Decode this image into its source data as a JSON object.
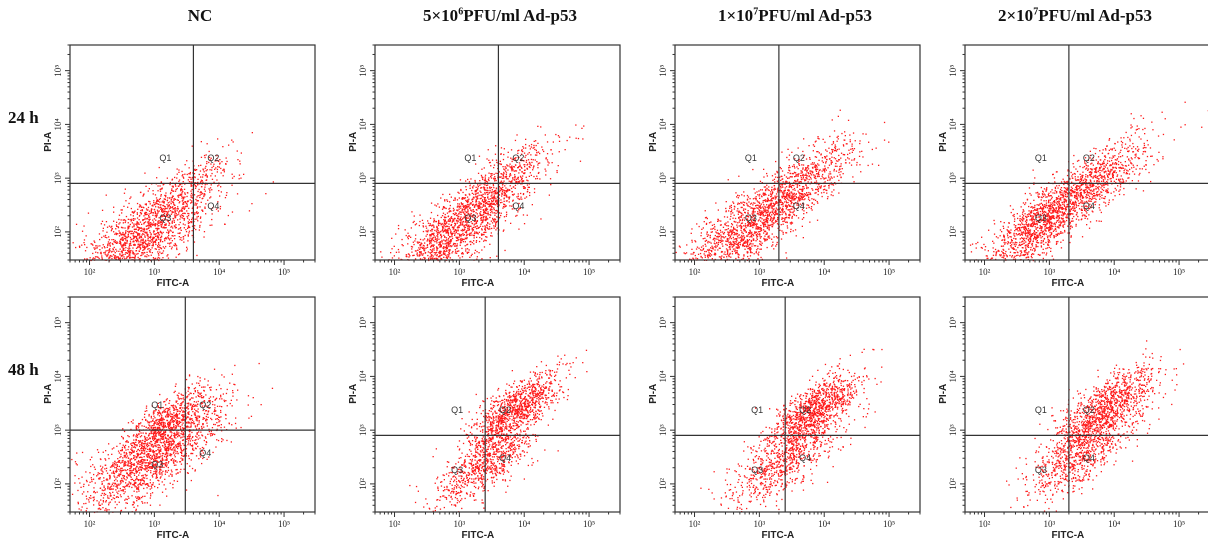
{
  "column_titles": [
    {
      "text": "NC"
    },
    {
      "text": "5×10",
      "sup": "6",
      "rest": "PFU/ml Ad-p53"
    },
    {
      "text": "1×10",
      "sup": "7",
      "rest": "PFU/ml Ad-p53"
    },
    {
      "text": "2×10",
      "sup": "7",
      "rest": "PFU/ml Ad-p53"
    }
  ],
  "row_labels": [
    "24 h",
    "48 h"
  ],
  "colors": {
    "dots": "#ff1a1a",
    "axes": "#333333"
  },
  "chart_data": [
    {
      "type": "scatter",
      "row": "24 h",
      "column": "NC",
      "xlabel": "FITC-A",
      "ylabel": "PI-A",
      "x_scale": "log",
      "y_scale": "log",
      "xlim": [
        50,
        300000
      ],
      "ylim": [
        30,
        300000
      ],
      "x_ticks": [
        "10²",
        "10³",
        "10⁴",
        "10⁵"
      ],
      "y_ticks": [
        "10²",
        "10³",
        "10⁴",
        "10⁵"
      ],
      "gate": {
        "x": 4000,
        "y": 800
      },
      "quadrants": [
        "Q1",
        "Q2",
        "Q3",
        "Q4"
      ],
      "dominant_quadrant": "Q3",
      "clusters": [
        {
          "cx": 700,
          "cy": 90,
          "spread": 0.55,
          "n": 1700
        },
        {
          "cx": 4000,
          "cy": 900,
          "spread": 0.35,
          "n": 180
        }
      ]
    },
    {
      "type": "scatter",
      "row": "24 h",
      "column": "5×10⁶PFU/ml Ad-p53",
      "xlabel": "FITC-A",
      "ylabel": "PI-A",
      "x_scale": "log",
      "y_scale": "log",
      "xlim": [
        50,
        300000
      ],
      "ylim": [
        30,
        300000
      ],
      "x_ticks": [
        "10²",
        "10³",
        "10⁴",
        "10⁵"
      ],
      "y_ticks": [
        "10²",
        "10³",
        "10⁴",
        "10⁵"
      ],
      "gate": {
        "x": 4000,
        "y": 800
      },
      "quadrants": [
        "Q1",
        "Q2",
        "Q3",
        "Q4"
      ],
      "dominant_quadrant": "Q3",
      "clusters": [
        {
          "cx": 1000,
          "cy": 130,
          "spread": 0.5,
          "n": 1500
        },
        {
          "cx": 5000,
          "cy": 1000,
          "spread": 0.4,
          "n": 420
        }
      ]
    },
    {
      "type": "scatter",
      "row": "24 h",
      "column": "1×10⁷PFU/ml Ad-p53",
      "xlabel": "FITC-A",
      "ylabel": "PI-A",
      "x_scale": "log",
      "y_scale": "log",
      "xlim": [
        50,
        300000
      ],
      "ylim": [
        30,
        300000
      ],
      "x_ticks": [
        "10²",
        "10³",
        "10⁴",
        "10⁵"
      ],
      "y_ticks": [
        "10²",
        "10³",
        "10⁴",
        "10⁵"
      ],
      "gate": {
        "x": 2000,
        "y": 800
      },
      "quadrants": [
        "Q1",
        "Q2",
        "Q3",
        "Q4"
      ],
      "dominant_quadrant": "Q3",
      "clusters": [
        {
          "cx": 600,
          "cy": 110,
          "spread": 0.5,
          "n": 1300
        },
        {
          "cx": 4500,
          "cy": 800,
          "spread": 0.45,
          "n": 700
        }
      ]
    },
    {
      "type": "scatter",
      "row": "24 h",
      "column": "2×10⁷PFU/ml Ad-p53",
      "xlabel": "FITC-A",
      "ylabel": "PI-A",
      "x_scale": "log",
      "y_scale": "log",
      "xlim": [
        50,
        300000
      ],
      "ylim": [
        30,
        300000
      ],
      "x_ticks": [
        "10²",
        "10³",
        "10⁴",
        "10⁵"
      ],
      "y_ticks": [
        "10²",
        "10³",
        "10⁴",
        "10⁵"
      ],
      "gate": {
        "x": 2000,
        "y": 800
      },
      "quadrants": [
        "Q1",
        "Q2",
        "Q3",
        "Q4"
      ],
      "dominant_quadrant": "Q3",
      "clusters": [
        {
          "cx": 700,
          "cy": 140,
          "spread": 0.45,
          "n": 1200
        },
        {
          "cx": 5000,
          "cy": 900,
          "spread": 0.45,
          "n": 800
        }
      ]
    },
    {
      "type": "scatter",
      "row": "48 h",
      "column": "NC",
      "xlabel": "FITC-A",
      "ylabel": "PI-A",
      "x_scale": "log",
      "y_scale": "log",
      "xlim": [
        50,
        300000
      ],
      "ylim": [
        30,
        300000
      ],
      "x_ticks": [
        "10²",
        "10³",
        "10⁴",
        "10⁵"
      ],
      "y_ticks": [
        "10²",
        "10³",
        "10⁴",
        "10⁵"
      ],
      "gate": {
        "x": 3000,
        "y": 1000
      },
      "quadrants": [
        "Q1",
        "Q2",
        "Q3",
        "Q4"
      ],
      "dominant_quadrant": "Q3",
      "clusters": [
        {
          "cx": 900,
          "cy": 350,
          "spread": 0.55,
          "n": 1700
        },
        {
          "cx": 1600,
          "cy": 1500,
          "spread": 0.35,
          "n": 500
        }
      ]
    },
    {
      "type": "scatter",
      "row": "48 h",
      "column": "5×10⁶PFU/ml Ad-p53",
      "xlabel": "FITC-A",
      "ylabel": "PI-A",
      "x_scale": "log",
      "y_scale": "log",
      "xlim": [
        50,
        300000
      ],
      "ylim": [
        30,
        300000
      ],
      "x_ticks": [
        "10²",
        "10³",
        "10⁴",
        "10⁵"
      ],
      "y_ticks": [
        "10²",
        "10³",
        "10⁴",
        "10⁵"
      ],
      "gate": {
        "x": 2500,
        "y": 800
      },
      "quadrants": [
        "Q1",
        "Q2",
        "Q3",
        "Q4"
      ],
      "dominant_quadrant": "Q2",
      "clusters": [
        {
          "cx": 7000,
          "cy": 2500,
          "spread": 0.35,
          "n": 1000
        },
        {
          "cx": 2500,
          "cy": 250,
          "spread": 0.4,
          "n": 800
        }
      ]
    },
    {
      "type": "scatter",
      "row": "48 h",
      "column": "1×10⁷PFU/ml Ad-p53",
      "xlabel": "FITC-A",
      "ylabel": "PI-A",
      "x_scale": "log",
      "y_scale": "log",
      "xlim": [
        50,
        300000
      ],
      "ylim": [
        30,
        300000
      ],
      "x_ticks": [
        "10²",
        "10³",
        "10⁴",
        "10⁵"
      ],
      "y_ticks": [
        "10²",
        "10³",
        "10⁴",
        "10⁵"
      ],
      "gate": {
        "x": 2500,
        "y": 800
      },
      "quadrants": [
        "Q1",
        "Q2",
        "Q3",
        "Q4"
      ],
      "dominant_quadrant": "Q2",
      "clusters": [
        {
          "cx": 7000,
          "cy": 2500,
          "spread": 0.35,
          "n": 1000
        },
        {
          "cx": 2500,
          "cy": 300,
          "spread": 0.45,
          "n": 800
        }
      ]
    },
    {
      "type": "scatter",
      "row": "48 h",
      "column": "2×10⁷PFU/ml Ad-p53",
      "xlabel": "FITC-A",
      "ylabel": "PI-A",
      "x_scale": "log",
      "y_scale": "log",
      "xlim": [
        50,
        300000
      ],
      "ylim": [
        30,
        300000
      ],
      "x_ticks": [
        "10²",
        "10³",
        "10⁴",
        "10⁵"
      ],
      "y_ticks": [
        "10²",
        "10³",
        "10⁴",
        "10⁵"
      ],
      "gate": {
        "x": 2000,
        "y": 800
      },
      "quadrants": [
        "Q1",
        "Q2",
        "Q3",
        "Q4"
      ],
      "dominant_quadrant": "Q2",
      "clusters": [
        {
          "cx": 7000,
          "cy": 2500,
          "spread": 0.4,
          "n": 1100
        },
        {
          "cx": 3000,
          "cy": 350,
          "spread": 0.4,
          "n": 700
        }
      ]
    }
  ]
}
